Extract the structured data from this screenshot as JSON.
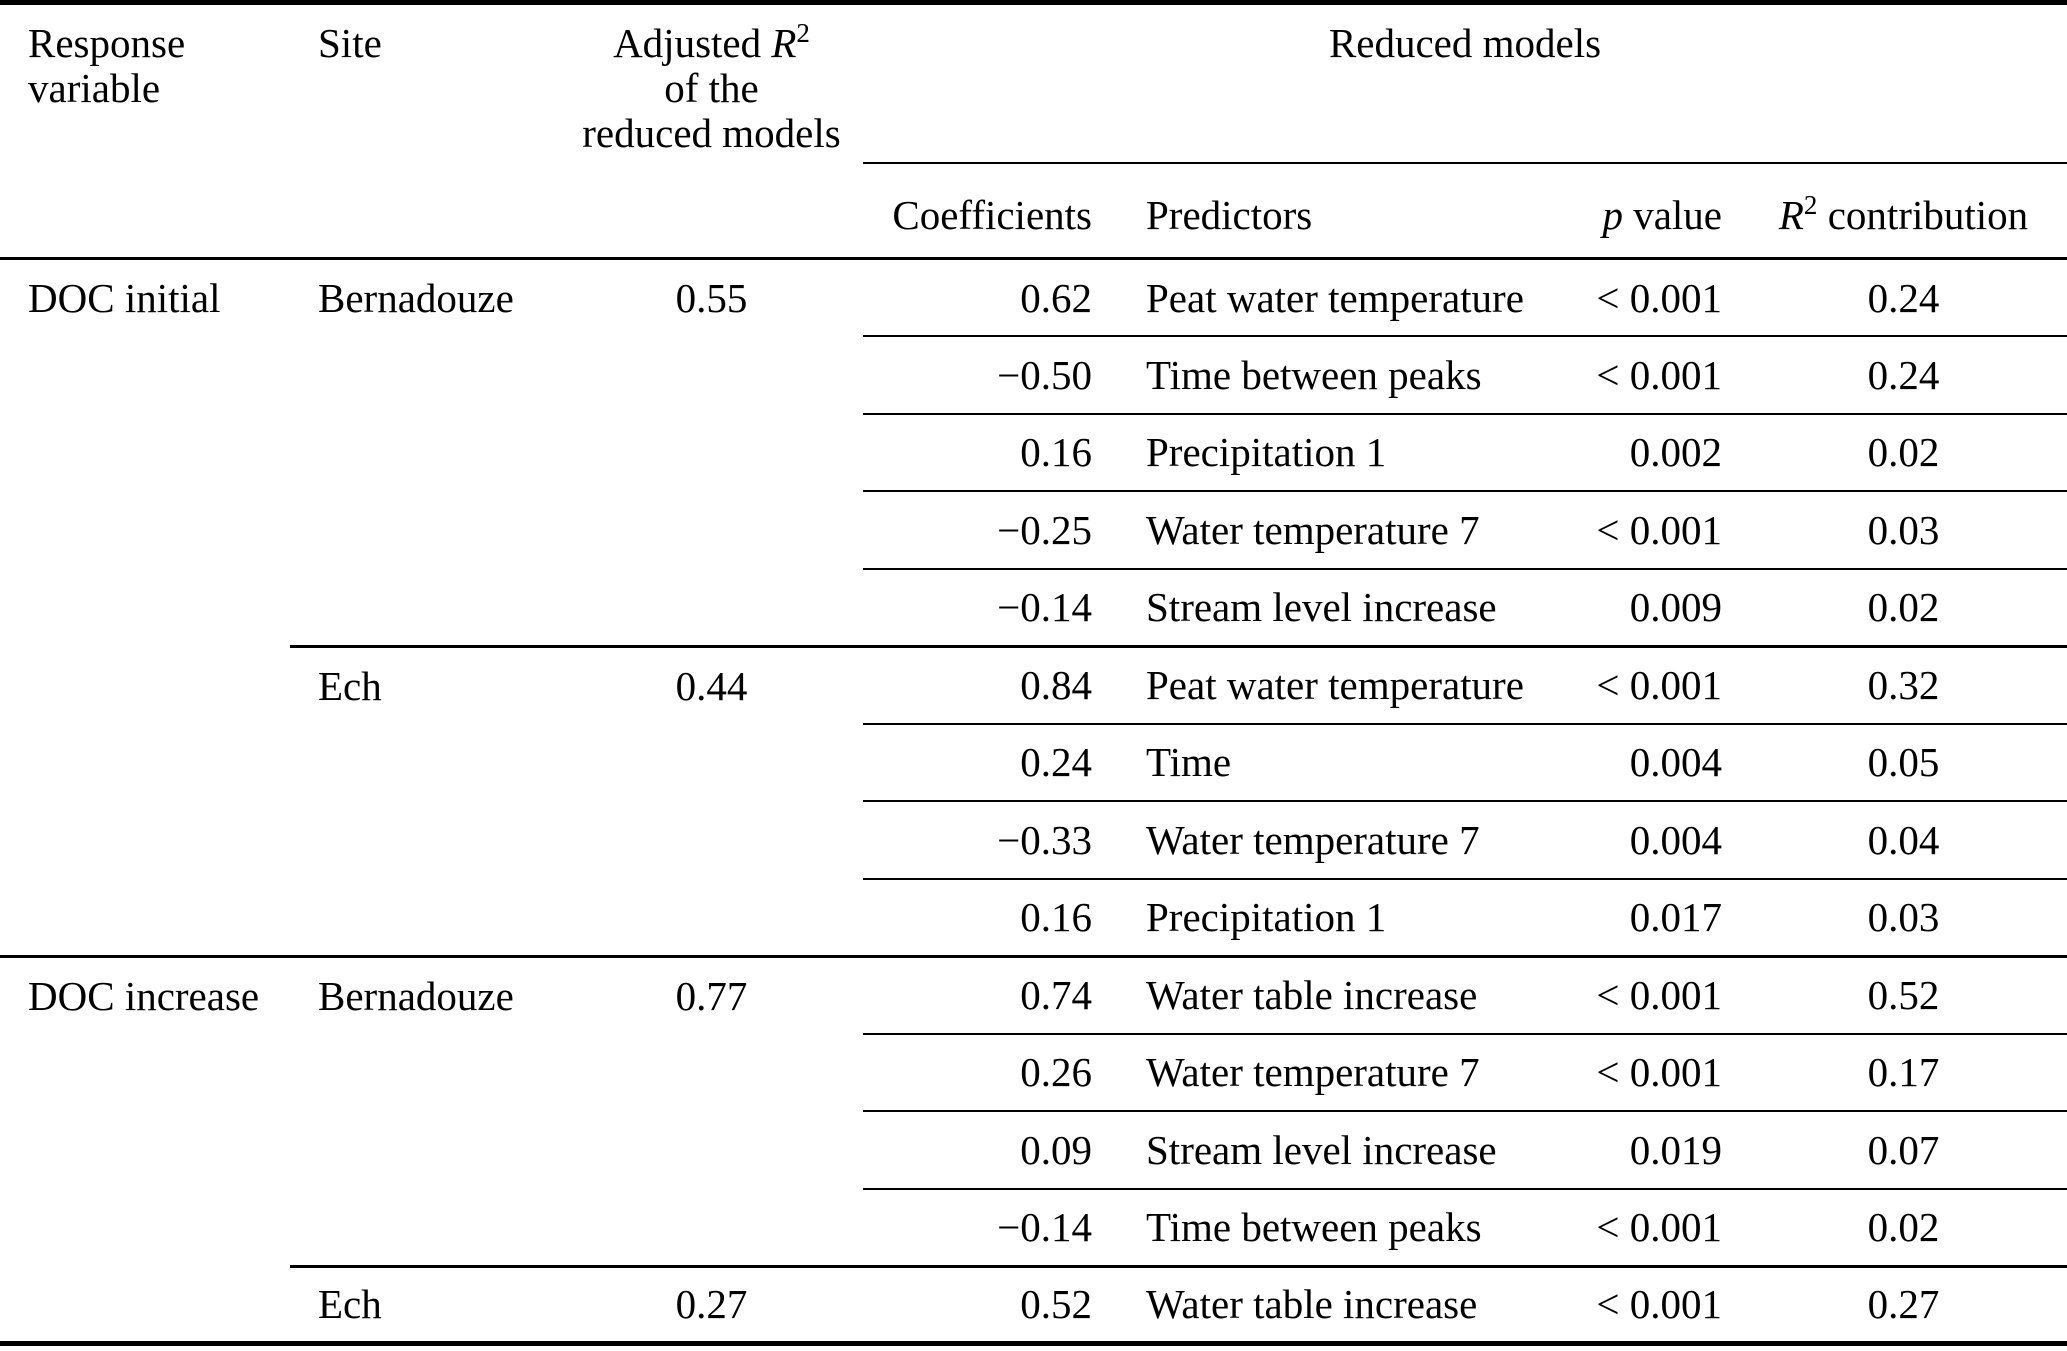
{
  "table": {
    "headers": {
      "response_variable": "Response variable",
      "site": "Site",
      "adjusted_r2": {
        "prefix": "Adjusted ",
        "symbol": "R",
        "sup": "2",
        "line2": "of the",
        "line3": "reduced models"
      },
      "reduced_models": "Reduced models",
      "coefficients": "Coefficients",
      "predictors": "Predictors",
      "p_value": {
        "symbol": "p",
        "suffix": " value"
      },
      "r2_contribution": {
        "symbol": "R",
        "sup": "2",
        "suffix": " contribution"
      }
    },
    "rows": [
      {
        "response": "DOC initial",
        "site": "Bernadouze",
        "adj_r2": "0.55",
        "coef": "0.62",
        "predictor": "Peat water temperature",
        "p": "< 0.001",
        "r2": "0.24"
      },
      {
        "response": "",
        "site": "",
        "adj_r2": "",
        "coef": "−0.50",
        "predictor": "Time between peaks",
        "p": "< 0.001",
        "r2": "0.24"
      },
      {
        "response": "",
        "site": "",
        "adj_r2": "",
        "coef": "0.16",
        "predictor": "Precipitation 1",
        "p": "0.002",
        "r2": "0.02"
      },
      {
        "response": "",
        "site": "",
        "adj_r2": "",
        "coef": "−0.25",
        "predictor": "Water temperature 7",
        "p": "< 0.001",
        "r2": "0.03"
      },
      {
        "response": "",
        "site": "",
        "adj_r2": "",
        "coef": "−0.14",
        "predictor": "Stream level increase",
        "p": "0.009",
        "r2": "0.02"
      },
      {
        "response": "",
        "site": "Ech",
        "adj_r2": "0.44",
        "coef": "0.84",
        "predictor": "Peat water temperature",
        "p": "< 0.001",
        "r2": "0.32"
      },
      {
        "response": "",
        "site": "",
        "adj_r2": "",
        "coef": "0.24",
        "predictor": "Time",
        "p": "0.004",
        "r2": "0.05"
      },
      {
        "response": "",
        "site": "",
        "adj_r2": "",
        "coef": "−0.33",
        "predictor": "Water temperature 7",
        "p": "0.004",
        "r2": "0.04"
      },
      {
        "response": "",
        "site": "",
        "adj_r2": "",
        "coef": "0.16",
        "predictor": "Precipitation 1",
        "p": "0.017",
        "r2": "0.03"
      },
      {
        "response": "DOC increase",
        "site": "Bernadouze",
        "adj_r2": "0.77",
        "coef": "0.74",
        "predictor": "Water table increase",
        "p": "< 0.001",
        "r2": "0.52"
      },
      {
        "response": "",
        "site": "",
        "adj_r2": "",
        "coef": "0.26",
        "predictor": "Water temperature 7",
        "p": "< 0.001",
        "r2": "0.17"
      },
      {
        "response": "",
        "site": "",
        "adj_r2": "",
        "coef": "0.09",
        "predictor": "Stream level increase",
        "p": "0.019",
        "r2": "0.07"
      },
      {
        "response": "",
        "site": "",
        "adj_r2": "",
        "coef": "−0.14",
        "predictor": "Time between peaks",
        "p": "< 0.001",
        "r2": "0.02"
      },
      {
        "response": "",
        "site": "Ech",
        "adj_r2": "0.27",
        "coef": "0.52",
        "predictor": "Water table increase",
        "p": "< 0.001",
        "r2": "0.27"
      }
    ]
  }
}
